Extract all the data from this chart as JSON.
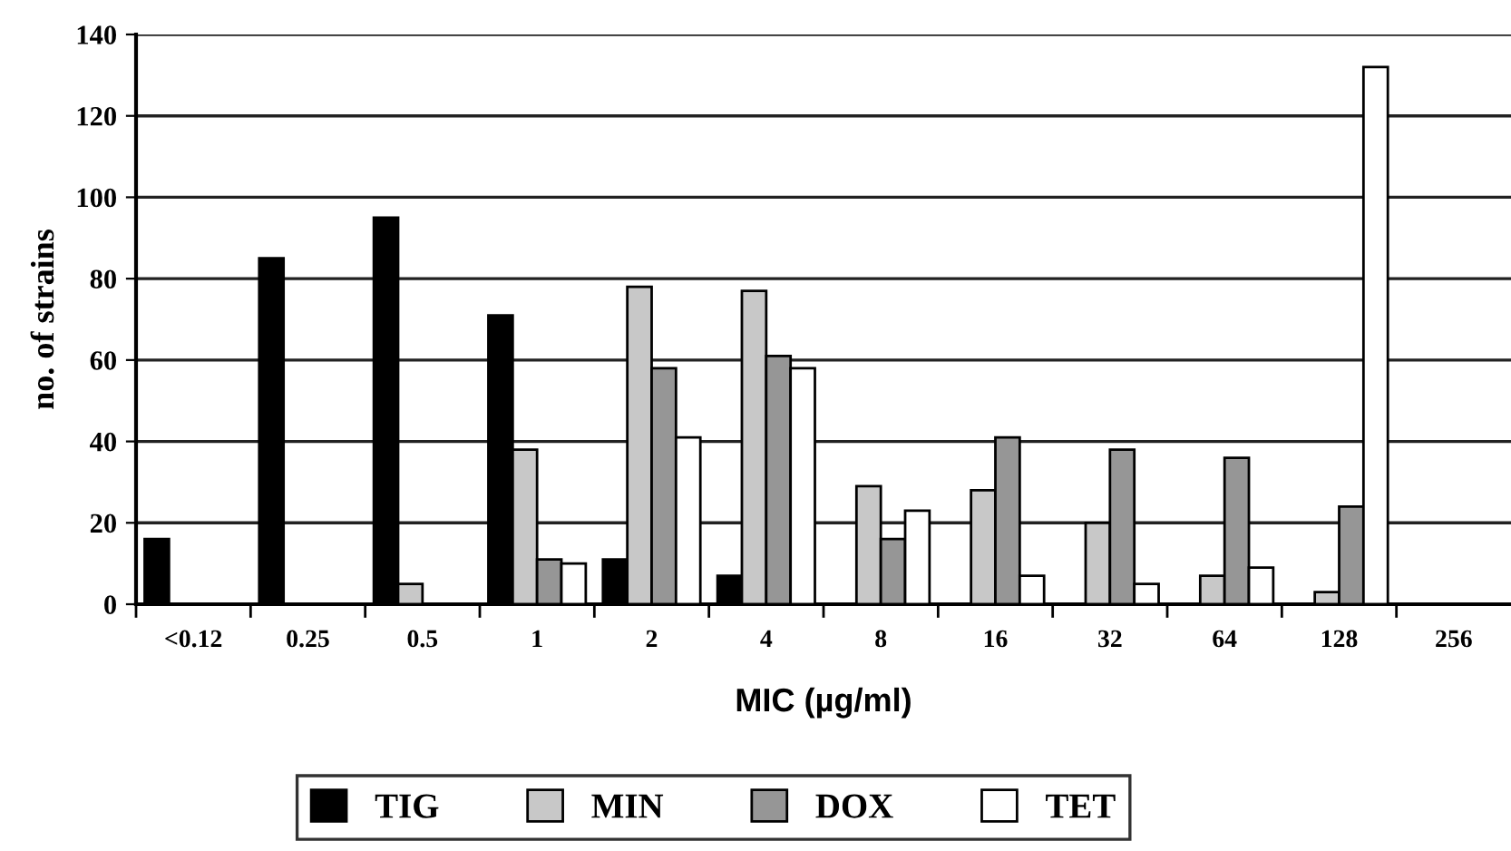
{
  "chart_data": {
    "type": "bar",
    "xlabel": "MIC (µg/ml)",
    "ylabel": "no. of strains",
    "categories": [
      "<0.12",
      "0.25",
      "0.5",
      "1",
      "2",
      "4",
      "8",
      "16",
      "32",
      "64",
      "128",
      "256"
    ],
    "series": [
      {
        "name": "TIG",
        "color": "#000000",
        "values": [
          16,
          85,
          95,
          71,
          11,
          7,
          0,
          0,
          0,
          0,
          0,
          0
        ]
      },
      {
        "name": "MIN",
        "color": "#c8c8c8",
        "values": [
          0,
          0,
          5,
          38,
          78,
          77,
          29,
          28,
          20,
          7,
          3,
          0
        ]
      },
      {
        "name": "DOX",
        "color": "#969696",
        "values": [
          0,
          0,
          0,
          11,
          58,
          61,
          16,
          41,
          38,
          36,
          24,
          0
        ]
      },
      {
        "name": "TET",
        "color": "#ffffff",
        "values": [
          0,
          0,
          0,
          10,
          41,
          58,
          23,
          7,
          5,
          9,
          132,
          0
        ]
      }
    ],
    "ylim": [
      0,
      140
    ],
    "yticks": [
      0,
      20,
      40,
      60,
      80,
      100,
      120,
      140
    ],
    "grid": "y",
    "legend": "bottom"
  }
}
